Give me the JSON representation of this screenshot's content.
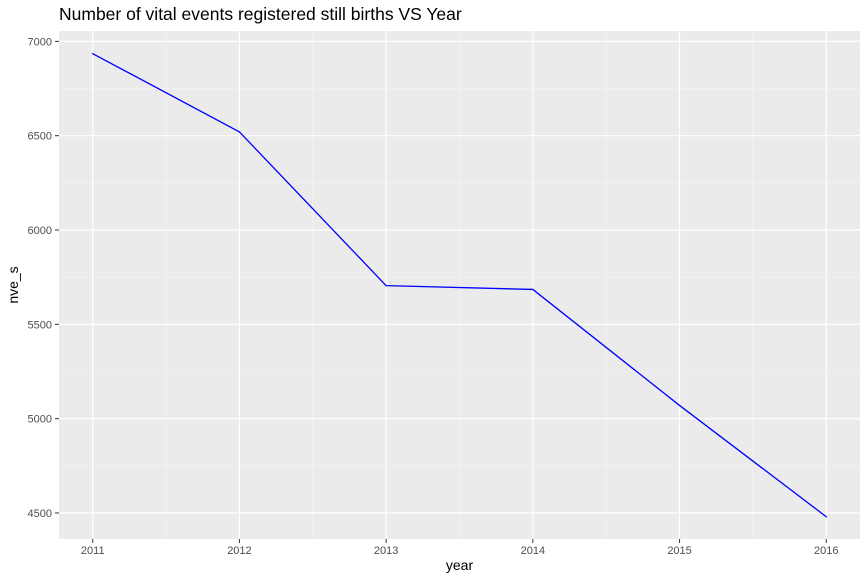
{
  "chart_data": {
    "type": "line",
    "title": "Number of vital events registered still births VS Year",
    "xlabel": "year",
    "ylabel": "nve_s",
    "x": [
      2011,
      2012,
      2013,
      2014,
      2015,
      2016
    ],
    "series": [
      {
        "values": [
          6935,
          6520,
          5705,
          5685,
          5070,
          4480
        ]
      }
    ],
    "xlim": [
      2010.77,
      2016.23
    ],
    "ylim": [
      4362,
      7055
    ],
    "x_ticks": [
      "2011",
      "2012",
      "2013",
      "2014",
      "2015",
      "2016"
    ],
    "y_ticks": [
      "4500",
      "5000",
      "5500",
      "6000",
      "6500",
      "7000"
    ],
    "grid": true,
    "legend": "none",
    "colors": {
      "line": "#0000ff",
      "panel_background": "#ebebeb",
      "grid_major": "#ffffff",
      "tick_text": "#4d4d4d"
    }
  }
}
